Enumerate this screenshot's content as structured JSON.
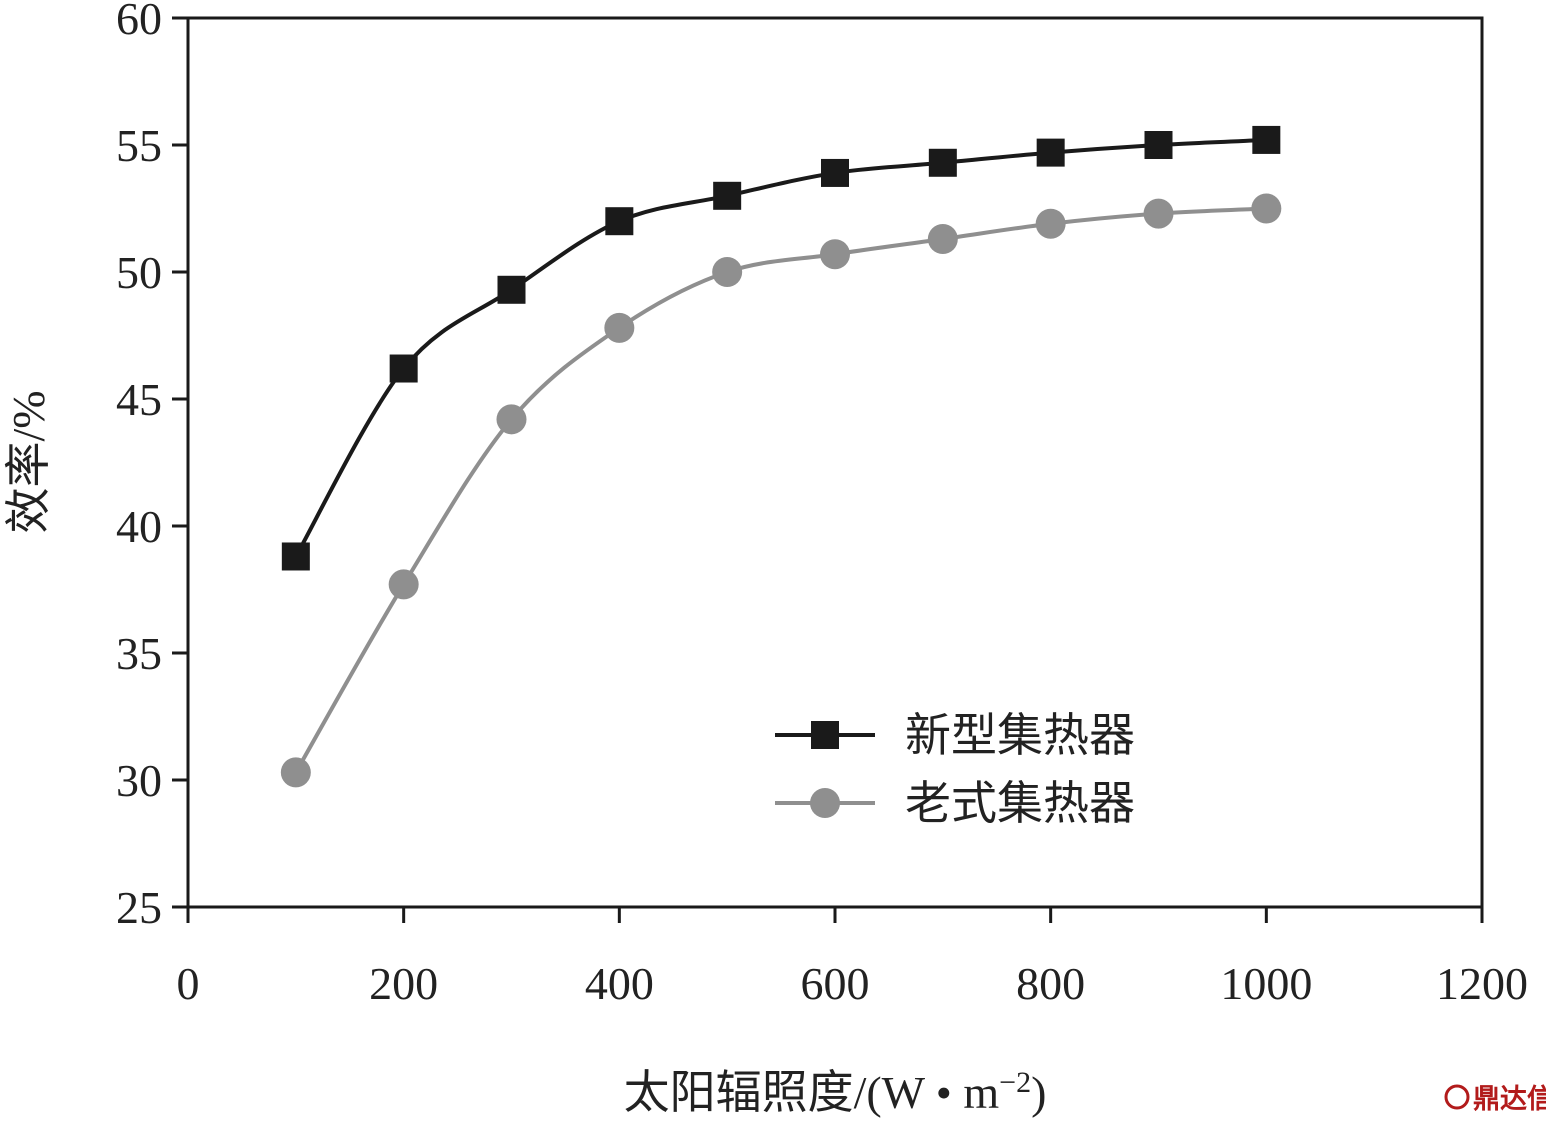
{
  "chart_data": {
    "type": "line",
    "title": "",
    "xlabel": "太阳辐照度/(W • m",
    "xlabel_superscript": "−2",
    "xlabel_close": ")",
    "ylabel": "效率/%",
    "xlim": [
      0,
      1200
    ],
    "ylim": [
      25,
      60
    ],
    "x_ticks": [
      0,
      200,
      400,
      600,
      800,
      1000,
      1200
    ],
    "y_ticks": [
      25,
      30,
      35,
      40,
      45,
      50,
      55,
      60
    ],
    "grid": false,
    "legend_position": "bottom-right",
    "x": [
      100,
      200,
      300,
      400,
      500,
      600,
      700,
      800,
      900,
      1000
    ],
    "series": [
      {
        "name": "新型集热器",
        "color": "#1a1a1a",
        "marker": "square",
        "values": [
          38.8,
          46.2,
          49.3,
          52.0,
          53.0,
          53.9,
          54.3,
          54.7,
          55.0,
          55.2
        ]
      },
      {
        "name": "老式集热器",
        "color": "#8f8f8f",
        "marker": "circle",
        "values": [
          30.3,
          37.7,
          44.2,
          47.8,
          50.0,
          50.7,
          51.3,
          51.9,
          52.3,
          52.5
        ]
      }
    ]
  },
  "watermark": {
    "text": "鼎达信"
  }
}
